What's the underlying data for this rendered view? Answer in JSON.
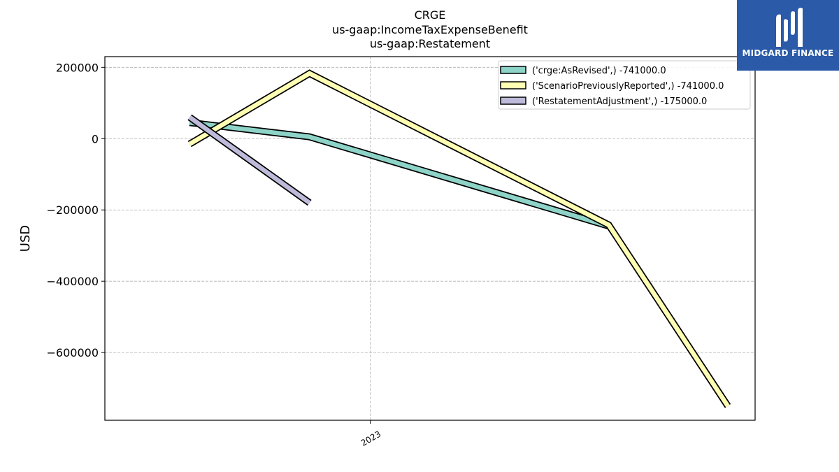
{
  "chart_data": {
    "type": "line",
    "title": "CRGE",
    "subtitle_lines": [
      "us-gaap:IncomeTaxExpenseBenefit",
      "us-gaap:Restatement"
    ],
    "ylabel": "USD",
    "xlabel": "",
    "x_tick_labels": [
      "2023"
    ],
    "y_tick_values": [
      200000,
      0,
      -200000,
      -400000,
      -600000
    ],
    "y_tick_labels": [
      "200000",
      "0",
      "−200000",
      "−400000",
      "−600000"
    ],
    "ylim": [
      -790000,
      230000
    ],
    "x_domain": [
      "2022-01-01",
      "2024-06-30"
    ],
    "grid": true,
    "legend_position": "top-right",
    "series": [
      {
        "name": "('crge:AsRevised',) -741000.0",
        "color": "#8dd3c7",
        "x": [
          "2022-03-31",
          "2022-09-30",
          "2023-12-31"
        ],
        "values": [
          45000,
          5000,
          -245000
        ]
      },
      {
        "name": "('ScenarioPreviouslyReported',) -741000.0",
        "color": "#ffffb3",
        "x": [
          "2022-03-31",
          "2022-09-30",
          "2023-12-31",
          "2024-06-30"
        ],
        "values": [
          -15000,
          183000,
          -242000,
          -750000
        ]
      },
      {
        "name": "('RestatementAdjustment',) -175000.0",
        "color": "#bebada",
        "x": [
          "2022-03-31",
          "2022-09-30"
        ],
        "values": [
          60000,
          -180000
        ]
      }
    ]
  },
  "branding": {
    "logo_text": "MIDGARD FINANCE"
  }
}
